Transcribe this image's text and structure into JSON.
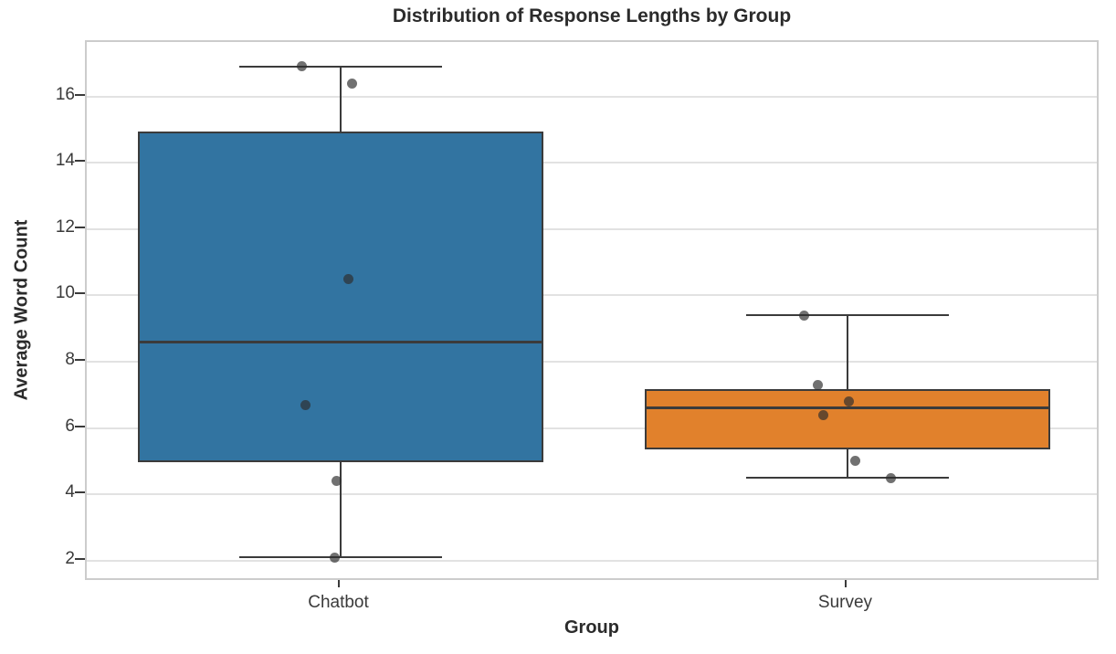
{
  "chart_data": {
    "type": "boxplot",
    "title": "Distribution of Response Lengths by Group",
    "xlabel": "Group",
    "ylabel": "Average Word Count",
    "categories": [
      "Chatbot",
      "Survey"
    ],
    "ylim": [
      1.36,
      17.64
    ],
    "yticks": [
      2,
      4,
      6,
      8,
      10,
      12,
      14,
      16
    ],
    "grid": "horizontal-only",
    "legend": "none",
    "colors": {
      "background": "#ffffff",
      "plot_border": "#cccccc",
      "gridline": "#e2e2e2",
      "box_edge": "#3b3b3b",
      "title_text": "#2b2b2b",
      "tick_text": "#3a3a3a",
      "chatbot_fill": "#3274A1",
      "survey_fill": "#E1812C",
      "point": "rgba(45,45,45,0.68)"
    },
    "series": [
      {
        "name": "Chatbot",
        "fill": "#3274A1",
        "stats": {
          "whisker_low": 2.1,
          "q1": 4.98,
          "median": 8.6,
          "q3": 14.93,
          "whisker_high": 16.9
        },
        "values": [
          16.9,
          16.4,
          10.5,
          6.7,
          4.4,
          2.1
        ],
        "points": [
          {
            "v": 16.9,
            "dx": -42
          },
          {
            "v": 16.4,
            "dx": 13
          },
          {
            "v": 10.5,
            "dx": 9
          },
          {
            "v": 6.7,
            "dx": -38
          },
          {
            "v": 4.4,
            "dx": -4
          },
          {
            "v": 2.1,
            "dx": -6
          }
        ]
      },
      {
        "name": "Survey",
        "fill": "#E1812C",
        "stats": {
          "whisker_low": 4.5,
          "q1": 5.35,
          "median": 6.6,
          "q3": 7.18,
          "whisker_high": 9.4
        },
        "values": [
          9.4,
          7.3,
          6.8,
          6.4,
          5.0,
          4.5
        ],
        "points": [
          {
            "v": 9.4,
            "dx": -47
          },
          {
            "v": 7.3,
            "dx": -32
          },
          {
            "v": 6.8,
            "dx": 2
          },
          {
            "v": 6.4,
            "dx": -26
          },
          {
            "v": 5.0,
            "dx": 9
          },
          {
            "v": 4.5,
            "dx": 48
          }
        ]
      }
    ]
  }
}
